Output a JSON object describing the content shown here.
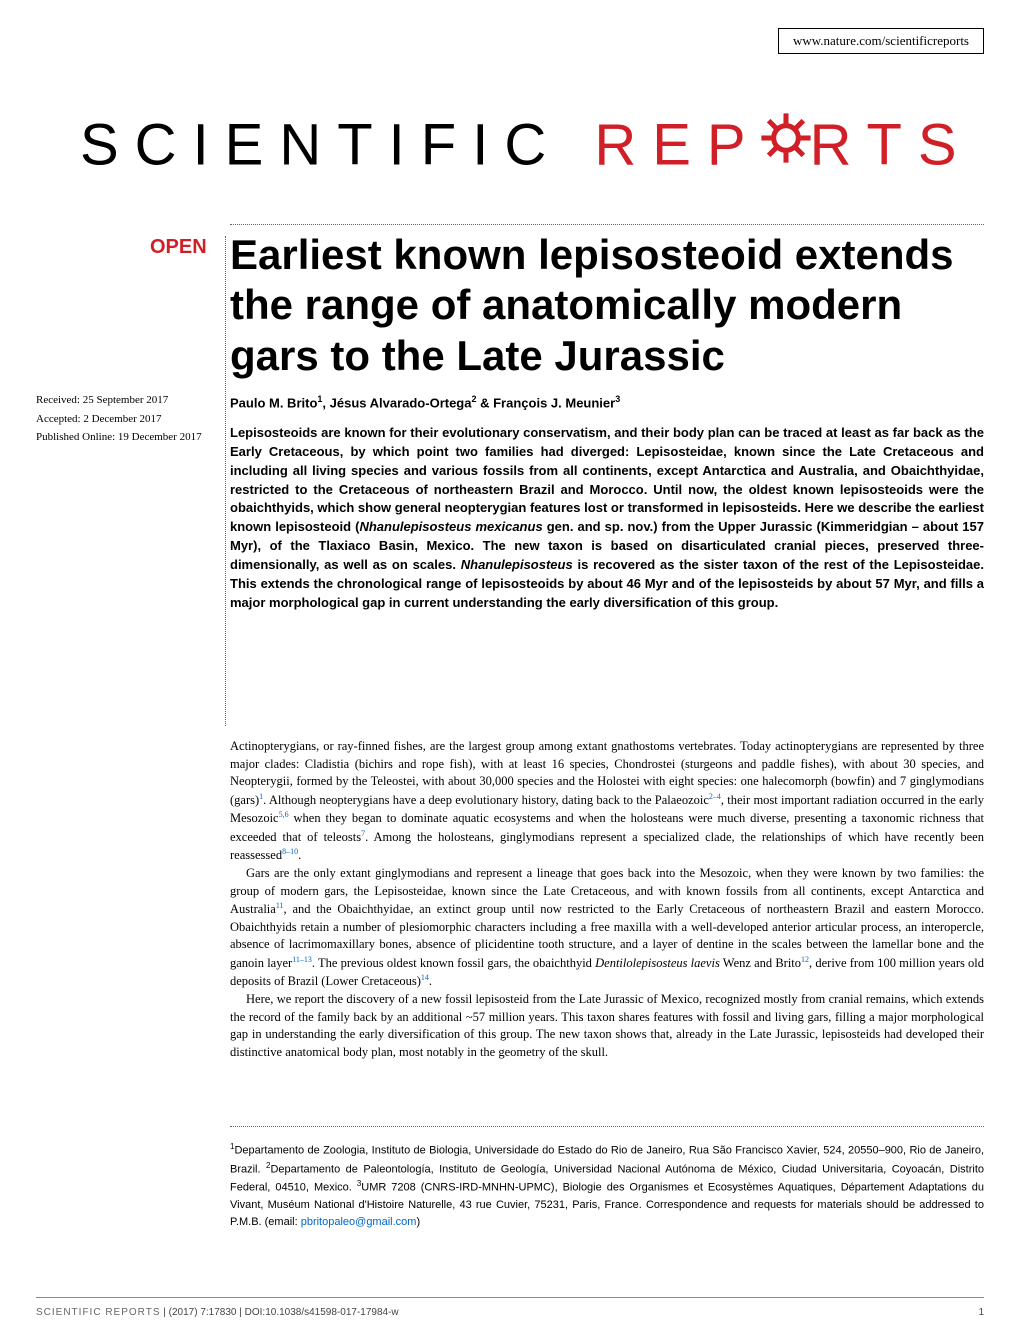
{
  "header": {
    "url": "www.nature.com/scientificreports"
  },
  "logo": {
    "part1": "SCIENTIFIC",
    "part2_left": "REP",
    "part2_right": "RTS",
    "color_black": "#000000",
    "color_red": "#d01f27"
  },
  "badge": {
    "open": "OPEN"
  },
  "article": {
    "title": "Earliest known lepisosteoid extends the range of anatomically modern gars to the Late Jurassic",
    "authors_html": "Paulo M. Brito<sup>1</sup>, Jésus Alvarado-Ortega<sup>2</sup> & François J. Meunier<sup>3</sup>",
    "received": "Received: 25 September 2017",
    "accepted": "Accepted: 2 December 2017",
    "published": "Published Online: 19 December 2017"
  },
  "abstract": {
    "text": "Lepisosteoids are known for their evolutionary conservatism, and their body plan can be traced at least as far back as the Early Cretaceous, by which point two families had diverged: Lepisosteidae, known since the Late Cretaceous and including all living species and various fossils from all continents, except Antarctica and Australia, and Obaichthyidae, restricted to the Cretaceous of northeastern Brazil and Morocco. Until now, the oldest known lepisosteoids were the obaichthyids, which show general neopterygian features lost or transformed in lepisosteids. Here we describe the earliest known lepisosteoid (<i>Nhanulepisosteus mexicanus</i> gen. and sp. nov.) from the Upper Jurassic (Kimmeridgian – about 157 Myr), of the Tlaxiaco Basin, Mexico. The new taxon is based on disarticulated cranial pieces, preserved three-dimensionally, as well as on scales. <i>Nhanulepisosteus</i> is recovered as the sister taxon of the rest of the Lepisosteidae. This extends the chronological range of lepisosteoids by about 46 Myr and of the lepisosteids by about 57 Myr, and fills a major morphological gap in current understanding the early diversification of this group."
  },
  "body": {
    "p1": "Actinopterygians, or ray-finned fishes, are the largest group among extant gnathostoms vertebrates. Today actinopterygians are represented by three major clades: Cladistia (bichirs and rope fish), with at least 16 species, Chondrostei (sturgeons and paddle fishes), with about 30 species, and Neopterygii, formed by the Teleostei, with about 30,000 species and the Holostei with eight species: one halecomorph (bowfin) and 7 ginglymodians (gars)<sup class=\"cite\">1</sup>. Although neopterygians have a deep evolutionary history, dating back to the Palaeozoic<sup class=\"cite\">2–4</sup>, their most important radiation occurred in the early Mesozoic<sup class=\"cite\">5,6</sup> when they began to dominate aquatic ecosystems and when the holosteans were much diverse, presenting a taxonomic richness that exceeded that of teleosts<sup class=\"cite\">7</sup>. Among the holosteans, ginglymodians represent a specialized clade, the relationships of which have recently been reassessed<sup class=\"cite\">8–10</sup>.",
    "p2": "Gars are the only extant ginglymodians and represent a lineage that goes back into the Mesozoic, when they were known by two families: the group of modern gars, the Lepisosteidae, known since the Late Cretaceous, and with known fossils from all continents, except Antarctica and Australia<sup class=\"cite\">11</sup>, and the Obaichthyidae, an extinct group until now restricted to the Early Cretaceous of northeastern Brazil and eastern Morocco. Obaichthyids retain a number of plesiomorphic characters including a free maxilla with a well-developed anterior articular process, an interopercle, absence of lacrimomaxillary bones, absence of plicidentine tooth structure, and a layer of dentine in the scales between the lamellar bone and the ganoin layer<sup class=\"cite\">11–13</sup>. The previous oldest known fossil gars, the obaichthyid <i>Dentilolepisosteus laevis</i> Wenz and Brito<sup class=\"cite\">12</sup>, derive from 100 million years old deposits of Brazil (Lower Cretaceous)<sup class=\"cite\">14</sup>.",
    "p3": "Here, we report the discovery of a new fossil lepisosteid from the Late Jurassic of Mexico, recognized mostly from cranial remains, which extends the record of the family back by an additional ~57 million years. This taxon shares features with fossil and living gars, filling a major morphological gap in understanding the early diversification of this group. The new taxon shows that, already in the Late Jurassic, lepisosteids had developed their distinctive anatomical body plan, most notably in the geometry of the skull."
  },
  "affiliations": {
    "text": "<sup>1</sup>Departamento de Zoologia, Instituto de Biologia, Universidade do Estado do Rio de Janeiro, Rua São Francisco Xavier, 524, 20550–900, Rio de Janeiro, Brazil. <sup>2</sup>Departamento de Paleontología, Instituto de Geología, Universidad Nacional Autónoma de México, Ciudad Universitaria, Coyoacán, Distrito Federal, 04510, Mexico. <sup>3</sup>UMR 7208 (CNRS-IRD-MNHN-UPMC), Biologie des Organismes et Ecosystèmes Aquatiques, Département Adaptations du Vivant, Muséum National d'Histoire Naturelle, 43 rue Cuvier, 75231, Paris, France. Correspondence and requests for materials should be addressed to P.M.B. (email: <span class=\"email\">pbritopaleo@gmail.com</span>)"
  },
  "footer": {
    "journal": "SCIENTIFIC REPORTS",
    "citation": " | (2017) 7:17830  | DOI:10.1038/s41598-017-17984-w",
    "page": "1"
  },
  "typography": {
    "title_fontsize": 42,
    "title_weight": 700,
    "authors_fontsize": 13,
    "abstract_fontsize": 13,
    "body_fontsize": 12.5,
    "affil_fontsize": 11,
    "footer_fontsize": 10
  },
  "colors": {
    "text": "#000000",
    "red": "#d01f27",
    "link": "#0066cc",
    "footer_grey": "#444444",
    "gear_fill": "#d01f27"
  }
}
